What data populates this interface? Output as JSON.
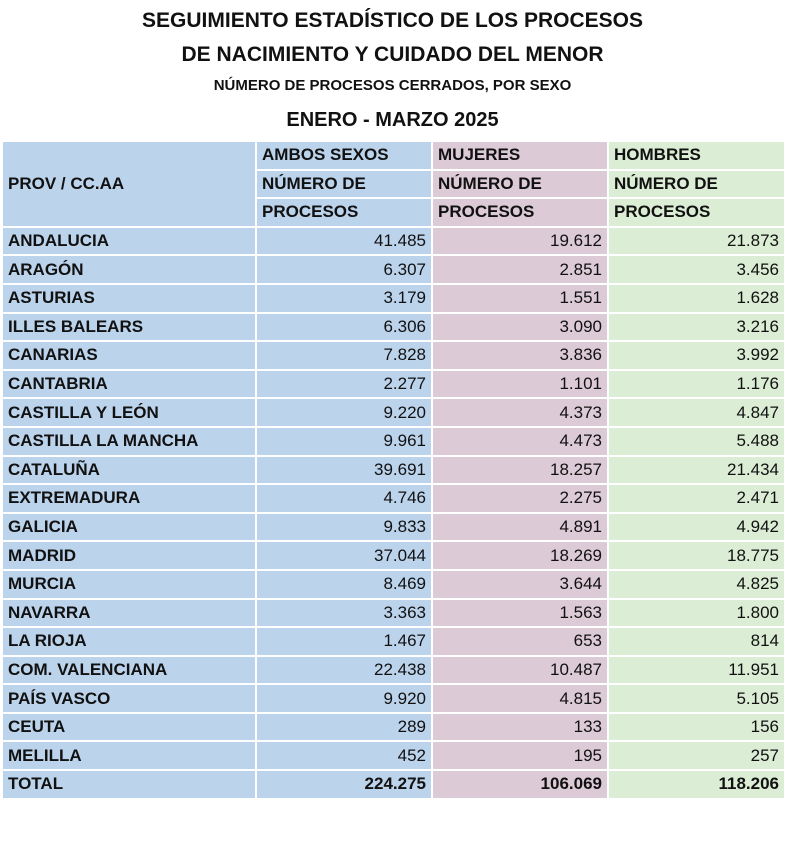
{
  "title": {
    "line1": "SEGUIMIENTO ESTADÍSTICO DE LOS PROCESOS",
    "line2": "DE NACIMIENTO Y CUIDADO DEL MENOR",
    "subtitle": "NÚMERO DE PROCESOS CERRADOS, POR SEXO",
    "period": "ENERO - MARZO 2025"
  },
  "colors": {
    "ambos": "#bcd3ec",
    "mujeres": "#dccbd6",
    "hombres": "#dcedd5"
  },
  "table": {
    "headers": {
      "prov": "PROV / CC.AA",
      "ambos": "AMBOS SEXOS",
      "mujeres": "MUJERES",
      "hombres": "HOMBRES",
      "sub_line1": "NÚMERO DE",
      "sub_line2": "PROCESOS"
    },
    "rows": [
      [
        "ANDALUCIA",
        "41.485",
        "19.612",
        "21.873"
      ],
      [
        "ARAGÓN",
        "6.307",
        "2.851",
        "3.456"
      ],
      [
        "ASTURIAS",
        "3.179",
        "1.551",
        "1.628"
      ],
      [
        "ILLES BALEARS",
        "6.306",
        "3.090",
        "3.216"
      ],
      [
        "CANARIAS",
        "7.828",
        "3.836",
        "3.992"
      ],
      [
        "CANTABRIA",
        "2.277",
        "1.101",
        "1.176"
      ],
      [
        "CASTILLA Y LEÓN",
        "9.220",
        "4.373",
        "4.847"
      ],
      [
        "CASTILLA LA MANCHA",
        "9.961",
        "4.473",
        "5.488"
      ],
      [
        "CATALUÑA",
        "39.691",
        "18.257",
        "21.434"
      ],
      [
        "EXTREMADURA",
        "4.746",
        "2.275",
        "2.471"
      ],
      [
        "GALICIA",
        "9.833",
        "4.891",
        "4.942"
      ],
      [
        "MADRID",
        "37.044",
        "18.269",
        "18.775"
      ],
      [
        "MURCIA",
        "8.469",
        "3.644",
        "4.825"
      ],
      [
        "NAVARRA",
        "3.363",
        "1.563",
        "1.800"
      ],
      [
        "LA RIOJA",
        "1.467",
        "653",
        "814"
      ],
      [
        "COM. VALENCIANA",
        "22.438",
        "10.487",
        "11.951"
      ],
      [
        "PAÍS VASCO",
        "9.920",
        "4.815",
        "5.105"
      ],
      [
        "CEUTA",
        "289",
        "133",
        "156"
      ],
      [
        "MELILLA",
        "452",
        "195",
        "257"
      ]
    ],
    "total": [
      "TOTAL",
      "224.275",
      "106.069",
      "118.206"
    ]
  }
}
